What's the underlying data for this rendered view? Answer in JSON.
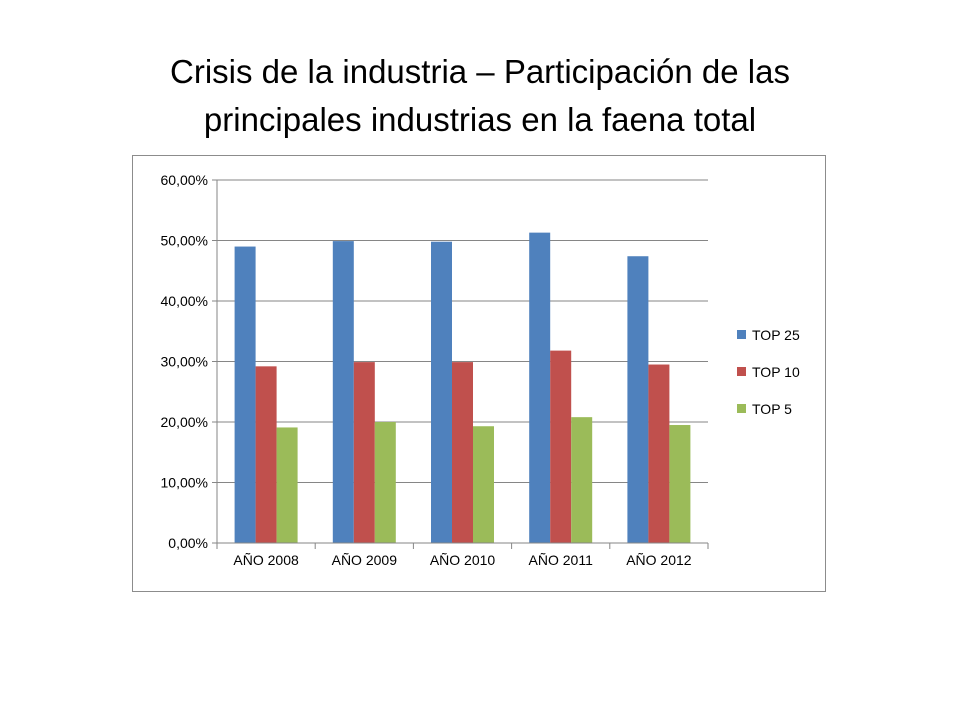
{
  "title": {
    "line1": "Crisis de la industria – Participación de las",
    "line2": "principales industrias en la faena total"
  },
  "chart_data": {
    "type": "bar",
    "title": "Crisis de la industria – Participación de las principales industrias en la faena total",
    "categories": [
      "AÑO 2008",
      "AÑO 2009",
      "AÑO 2010",
      "AÑO 2011",
      "AÑO 2012"
    ],
    "series": [
      {
        "name": "TOP 25",
        "color": "#4f81bd",
        "values": [
          49.0,
          49.9,
          49.8,
          51.3,
          47.4
        ]
      },
      {
        "name": "TOP 10",
        "color": "#c0504d",
        "values": [
          29.2,
          29.9,
          29.9,
          31.8,
          29.5
        ]
      },
      {
        "name": "TOP 5",
        "color": "#9bbb59",
        "values": [
          19.1,
          20.0,
          19.3,
          20.8,
          19.5
        ]
      }
    ],
    "yticks": [
      "0,00%",
      "10,00%",
      "20,00%",
      "30,00%",
      "40,00%",
      "50,00%",
      "60,00%"
    ],
    "ylim": [
      0,
      60
    ],
    "xlabel": "",
    "ylabel": "",
    "grid": true,
    "legend": "right"
  }
}
